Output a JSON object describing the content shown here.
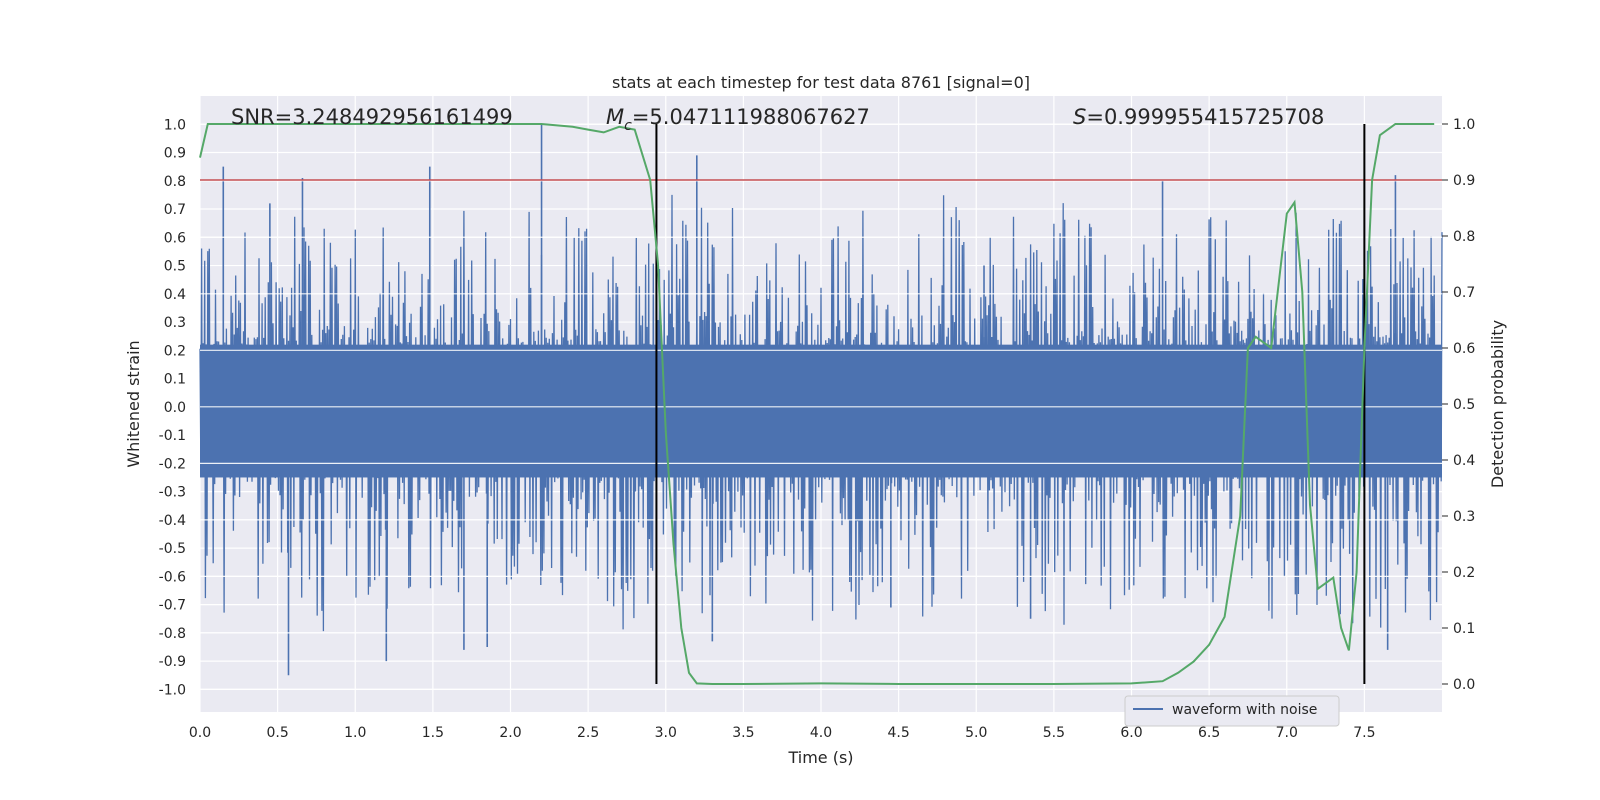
{
  "chart_data": {
    "type": "line",
    "title": "stats at each timestep for test data 8761 [signal=0]",
    "xlabel": "Time (s)",
    "ylabel_left": "Whitened strain",
    "ylabel_right": "Detection probability",
    "xlim": [
      0.0,
      8.0
    ],
    "ylim_left": [
      -1.08,
      1.1
    ],
    "ylim_right": [
      -0.05,
      1.05
    ],
    "x_ticks": [
      "0.0",
      "0.5",
      "1.0",
      "1.5",
      "2.0",
      "2.5",
      "3.0",
      "3.5",
      "4.0",
      "4.5",
      "5.0",
      "5.5",
      "6.0",
      "6.5",
      "7.0",
      "7.5"
    ],
    "y_left_ticks": [
      "1.0",
      "0.9",
      "0.8",
      "0.7",
      "0.6",
      "0.5",
      "0.4",
      "0.3",
      "0.2",
      "0.1",
      "0.0",
      "-0.1",
      "-0.2",
      "-0.3",
      "-0.4",
      "-0.5",
      "-0.6",
      "-0.7",
      "-0.8",
      "-0.9",
      "-1.0"
    ],
    "y_right_ticks": [
      "1.0",
      "0.9",
      "0.8",
      "0.7",
      "0.6",
      "0.5",
      "0.4",
      "0.3",
      "0.2",
      "0.1",
      "0.0"
    ],
    "grid": true,
    "legend_position": "bottom-right",
    "legend": [
      "waveform with noise"
    ],
    "annotations": {
      "snr": "SNR=3.248492956161499",
      "mc_symbol": "M",
      "mc_sub": "c",
      "mc_value": "=5.047111988067627",
      "s_symbol": "S",
      "s_value": "=0.999955415725708"
    },
    "colors": {
      "waveform": "#4c72b0",
      "probability": "#55a868",
      "threshold": "#c44e52",
      "markers": "#000000",
      "background": "#eaeaf2"
    },
    "threshold_probability": 0.9,
    "vertical_markers": [
      2.94,
      7.5
    ],
    "waveform_series": {
      "name": "waveform with noise",
      "x_range": [
        0.0,
        8.0
      ],
      "upper_envelope_typical": 0.38,
      "lower_envelope_typical": -0.45,
      "peaks": [
        [
          0.15,
          0.85
        ],
        [
          0.45,
          0.72
        ],
        [
          0.66,
          0.81
        ],
        [
          1.48,
          0.85
        ],
        [
          2.2,
          1.0
        ],
        [
          3.2,
          0.89
        ],
        [
          5.05,
          0.5
        ],
        [
          6.2,
          0.8
        ],
        [
          7.7,
          0.82
        ]
      ],
      "troughs": [
        [
          0.57,
          -0.95
        ],
        [
          1.2,
          -0.9
        ],
        [
          1.7,
          -0.86
        ],
        [
          1.85,
          -0.85
        ],
        [
          3.3,
          -0.83
        ],
        [
          4.45,
          -0.71
        ],
        [
          5.35,
          -0.75
        ],
        [
          7.65,
          -0.86
        ]
      ]
    },
    "probability_series": {
      "x": [
        0.0,
        0.05,
        0.5,
        1.0,
        1.5,
        2.0,
        2.2,
        2.4,
        2.5,
        2.6,
        2.7,
        2.8,
        2.9,
        2.95,
        3.0,
        3.05,
        3.1,
        3.15,
        3.2,
        3.3,
        3.5,
        4.0,
        4.5,
        5.0,
        5.5,
        6.0,
        6.2,
        6.3,
        6.4,
        6.5,
        6.6,
        6.7,
        6.75,
        6.8,
        6.9,
        7.0,
        7.05,
        7.1,
        7.15,
        7.2,
        7.25,
        7.3,
        7.35,
        7.4,
        7.45,
        7.5,
        7.55,
        7.6,
        7.7,
        7.8,
        7.95
      ],
      "y": [
        0.94,
        1.0,
        1.0,
        1.0,
        1.0,
        1.0,
        1.0,
        0.995,
        0.99,
        0.985,
        0.995,
        0.99,
        0.9,
        0.75,
        0.45,
        0.25,
        0.1,
        0.02,
        0.001,
        0.0,
        0.0,
        0.001,
        0.0,
        0.0,
        0.0,
        0.001,
        0.005,
        0.02,
        0.04,
        0.07,
        0.12,
        0.3,
        0.6,
        0.62,
        0.6,
        0.84,
        0.86,
        0.7,
        0.32,
        0.17,
        0.18,
        0.19,
        0.1,
        0.06,
        0.2,
        0.6,
        0.9,
        0.98,
        1.0,
        1.0,
        1.0
      ]
    }
  }
}
